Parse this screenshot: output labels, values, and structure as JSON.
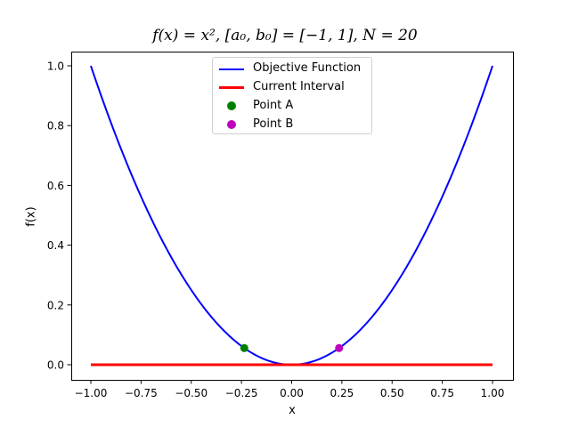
{
  "chart_data": {
    "type": "line",
    "title": "f(x) = x², [a₀, b₀] = [−1, 1], N = 20",
    "xlabel": "x",
    "ylabel": "f(x)",
    "xlim": [
      -1.1,
      1.1
    ],
    "ylim": [
      -0.05,
      1.05
    ],
    "xticks": [
      "−1.00",
      "−0.75",
      "−0.50",
      "−0.25",
      "0.00",
      "0.25",
      "0.50",
      "0.75",
      "1.00"
    ],
    "xtick_values": [
      -1.0,
      -0.75,
      -0.5,
      -0.25,
      0.0,
      0.25,
      0.5,
      0.75,
      1.0
    ],
    "yticks": [
      "0.0",
      "0.2",
      "0.4",
      "0.6",
      "0.8",
      "1.0"
    ],
    "ytick_values": [
      0.0,
      0.2,
      0.4,
      0.6,
      0.8,
      1.0
    ],
    "grid": false,
    "legend_position": "upper center",
    "series": [
      {
        "name": "Objective Function",
        "kind": "line",
        "color": "#0000ff",
        "function": "x^2",
        "x_range": [
          -1,
          1
        ]
      },
      {
        "name": "Current Interval",
        "kind": "line",
        "color": "#ff0000",
        "x": [
          -1,
          1
        ],
        "y": [
          0,
          0
        ]
      },
      {
        "name": "Point A",
        "kind": "marker",
        "color": "#008000",
        "x": [
          -0.236
        ],
        "y": [
          0.0557
        ]
      },
      {
        "name": "Point B",
        "kind": "marker",
        "color": "#bf00bf",
        "x": [
          0.236
        ],
        "y": [
          0.0557
        ]
      }
    ]
  },
  "legend": {
    "items": [
      {
        "label": "Objective Function",
        "color": "#0000ff",
        "kind": "line"
      },
      {
        "label": "Current Interval",
        "color": "#ff0000",
        "kind": "line"
      },
      {
        "label": "Point A",
        "color": "#008000",
        "kind": "dot"
      },
      {
        "label": "Point B",
        "color": "#bf00bf",
        "kind": "dot"
      }
    ]
  },
  "labels": {
    "title": "f(x) = x², [a₀, b₀] = [−1, 1], N = 20",
    "xlabel": "x",
    "ylabel": "f(x)"
  }
}
